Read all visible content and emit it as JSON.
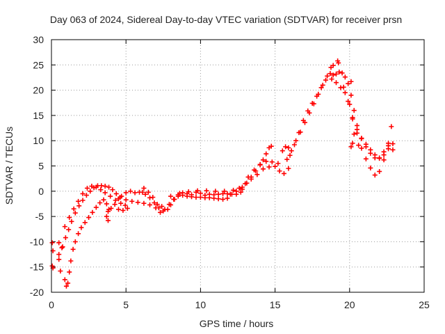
{
  "chart_data": {
    "type": "scatter",
    "title": "Day 063 of 2024, Sidereal Day-to-day VTEC variation (SDTVAR) for receiver prsn",
    "xlabel": "GPS time / hours",
    "ylabel": "SDTVAR / TECUs",
    "xlim": [
      0,
      25
    ],
    "ylim": [
      -20,
      30
    ],
    "xticks": [
      0,
      5,
      10,
      15,
      20,
      25
    ],
    "yticks": [
      -20,
      -15,
      -10,
      -5,
      0,
      5,
      10,
      15,
      20,
      25,
      30
    ],
    "grid": true,
    "grid_style": "dotted",
    "marker": "plus",
    "color": "#ff0000",
    "series": [
      {
        "name": "",
        "points": [
          [
            0.05,
            -10.2
          ],
          [
            0.1,
            -11.8
          ],
          [
            0.05,
            -14.8
          ],
          [
            0.1,
            -15.2
          ],
          [
            0.5,
            -10.2
          ],
          [
            0.7,
            -11.2
          ],
          [
            0.5,
            -13.5
          ],
          [
            0.6,
            -15.8
          ],
          [
            0.9,
            -17.5
          ],
          [
            1.0,
            -18.8
          ],
          [
            1.1,
            -18.2
          ],
          [
            1.2,
            -16.0
          ],
          [
            1.3,
            -13.8
          ],
          [
            1.45,
            -11.5
          ],
          [
            1.6,
            -10.0
          ],
          [
            1.8,
            -8.4
          ],
          [
            2.0,
            -7.2
          ],
          [
            2.25,
            -6.2
          ],
          [
            2.5,
            -5.2
          ],
          [
            2.75,
            -4.2
          ],
          [
            3.0,
            -3.2
          ],
          [
            3.25,
            -2.3
          ],
          [
            3.5,
            -1.7
          ],
          [
            3.7,
            -2.5
          ],
          [
            3.8,
            -4.0
          ],
          [
            3.7,
            -5.0
          ],
          [
            3.8,
            -5.8
          ],
          [
            0.5,
            -12.5
          ],
          [
            0.75,
            -11.0
          ],
          [
            0.95,
            -9.2
          ],
          [
            1.15,
            -7.6
          ],
          [
            1.35,
            -6.0
          ],
          [
            1.6,
            -4.3
          ],
          [
            1.85,
            -2.9
          ],
          [
            2.1,
            -1.8
          ],
          [
            2.35,
            -0.8
          ],
          [
            2.6,
            0.0
          ],
          [
            2.85,
            0.7
          ],
          [
            3.1,
            1.1
          ],
          [
            3.35,
            1.1
          ],
          [
            3.6,
            1.0
          ],
          [
            3.85,
            0.8
          ],
          [
            4.1,
            0.3
          ],
          [
            4.35,
            -0.5
          ],
          [
            4.5,
            -1.5
          ],
          [
            4.25,
            -2.6
          ],
          [
            4.0,
            -3.4
          ],
          [
            3.85,
            -3.6
          ],
          [
            0.9,
            -7.0
          ],
          [
            1.2,
            -5.2
          ],
          [
            1.5,
            -3.5
          ],
          [
            1.8,
            -2.0
          ],
          [
            2.1,
            -0.5
          ],
          [
            2.4,
            0.6
          ],
          [
            2.7,
            1.0
          ],
          [
            3.0,
            0.8
          ],
          [
            3.3,
            0.3
          ],
          [
            3.6,
            -0.3
          ],
          [
            3.95,
            -1.0
          ],
          [
            4.3,
            -1.8
          ],
          [
            4.65,
            -2.4
          ],
          [
            4.95,
            -2.8
          ],
          [
            5.1,
            -3.4
          ],
          [
            4.8,
            -3.8
          ],
          [
            4.5,
            -3.6
          ],
          [
            4.7,
            -1.0
          ],
          [
            5.0,
            -0.3
          ],
          [
            5.3,
            0.0
          ],
          [
            5.6,
            -0.3
          ],
          [
            5.9,
            -0.2
          ],
          [
            6.1,
            -0.2
          ],
          [
            6.3,
            -0.6
          ],
          [
            6.6,
            -1.3
          ],
          [
            6.9,
            -2.3
          ],
          [
            7.2,
            -3.3
          ],
          [
            7.5,
            -3.9
          ],
          [
            7.8,
            -3.6
          ],
          [
            8.0,
            -2.7
          ],
          [
            8.25,
            -1.6
          ],
          [
            8.5,
            -0.7
          ],
          [
            8.8,
            -0.8
          ],
          [
            9.1,
            -1.0
          ],
          [
            9.4,
            -1.1
          ],
          [
            9.7,
            -1.2
          ],
          [
            10.0,
            -1.2
          ],
          [
            10.3,
            -1.3
          ],
          [
            10.6,
            -1.3
          ],
          [
            10.9,
            -1.4
          ],
          [
            11.2,
            -1.5
          ],
          [
            11.5,
            -1.6
          ],
          [
            11.8,
            -1.4
          ],
          [
            4.6,
            -1.2
          ],
          [
            5.0,
            -1.7
          ],
          [
            5.4,
            -2.0
          ],
          [
            5.8,
            -2.2
          ],
          [
            6.2,
            -2.4
          ],
          [
            6.6,
            -2.7
          ],
          [
            7.0,
            -3.3
          ],
          [
            7.3,
            -4.2
          ],
          [
            7.6,
            -3.6
          ],
          [
            7.9,
            -2.6
          ],
          [
            8.2,
            -1.6
          ],
          [
            8.5,
            -1.0
          ],
          [
            8.8,
            -0.3
          ],
          [
            9.1,
            -0.5
          ],
          [
            9.4,
            -0.7
          ],
          [
            9.7,
            -0.2
          ],
          [
            10.0,
            -0.4
          ],
          [
            10.3,
            -0.8
          ],
          [
            10.6,
            -0.6
          ],
          [
            10.9,
            -0.7
          ],
          [
            11.2,
            -0.6
          ],
          [
            11.5,
            -0.5
          ],
          [
            11.8,
            -0.5
          ],
          [
            12.1,
            -0.6
          ],
          [
            12.4,
            -0.6
          ],
          [
            12.7,
            -0.2
          ],
          [
            6.2,
            0.6
          ],
          [
            6.5,
            -0.2
          ],
          [
            6.8,
            -1.2
          ],
          [
            7.1,
            -2.6
          ],
          [
            7.4,
            -3.0
          ],
          [
            8.0,
            -1.0
          ],
          [
            8.6,
            -0.4
          ],
          [
            9.2,
            -0.1
          ],
          [
            9.8,
            0.1
          ],
          [
            10.4,
            0.1
          ],
          [
            11.0,
            0.0
          ],
          [
            11.6,
            0.0
          ],
          [
            12.2,
            0.2
          ],
          [
            12.8,
            0.8
          ],
          [
            12.0,
            -0.6
          ],
          [
            12.4,
            0.0
          ],
          [
            12.8,
            0.4
          ],
          [
            13.1,
            1.6
          ],
          [
            13.4,
            2.8
          ],
          [
            13.7,
            4.0
          ],
          [
            14.0,
            5.2
          ],
          [
            14.2,
            6.2
          ],
          [
            14.4,
            7.4
          ],
          [
            14.6,
            8.6
          ],
          [
            14.75,
            8.9
          ],
          [
            12.6,
            0.6
          ],
          [
            13.0,
            1.5
          ],
          [
            13.4,
            2.4
          ],
          [
            13.8,
            3.3
          ],
          [
            14.2,
            4.4
          ],
          [
            14.6,
            4.8
          ],
          [
            15.0,
            4.9
          ],
          [
            15.3,
            4.0
          ],
          [
            15.6,
            3.5
          ],
          [
            15.9,
            4.5
          ],
          [
            13.2,
            2.8
          ],
          [
            13.6,
            4.2
          ],
          [
            14.0,
            5.3
          ],
          [
            14.4,
            5.9
          ],
          [
            14.8,
            5.8
          ],
          [
            15.2,
            5.5
          ],
          [
            15.5,
            8.0
          ],
          [
            15.7,
            8.8
          ],
          [
            15.9,
            8.6
          ],
          [
            15.8,
            6.3
          ],
          [
            16.1,
            8.0
          ],
          [
            16.4,
            10.0
          ],
          [
            16.7,
            11.7
          ],
          [
            17.0,
            13.6
          ],
          [
            17.3,
            15.5
          ],
          [
            17.6,
            17.3
          ],
          [
            17.9,
            19.2
          ],
          [
            18.2,
            21.0
          ],
          [
            18.5,
            22.8
          ],
          [
            18.75,
            24.5
          ],
          [
            18.9,
            24.9
          ],
          [
            16.0,
            7.1
          ],
          [
            16.3,
            9.2
          ],
          [
            16.6,
            11.6
          ],
          [
            16.9,
            14.0
          ],
          [
            17.2,
            15.9
          ],
          [
            17.5,
            17.4
          ],
          [
            17.8,
            18.8
          ],
          [
            18.1,
            20.5
          ],
          [
            18.4,
            22.0
          ],
          [
            18.7,
            23.3
          ],
          [
            18.9,
            23.0
          ],
          [
            18.8,
            22.2
          ],
          [
            19.1,
            23.2
          ],
          [
            19.3,
            23.6
          ],
          [
            19.5,
            23.4
          ],
          [
            19.7,
            22.6
          ],
          [
            19.9,
            21.3
          ],
          [
            20.1,
            19.0
          ],
          [
            20.3,
            16.0
          ],
          [
            20.5,
            13.0
          ],
          [
            20.8,
            10.5
          ],
          [
            21.1,
            8.8
          ],
          [
            21.4,
            7.5
          ],
          [
            21.7,
            6.6
          ],
          [
            22.0,
            6.6
          ],
          [
            22.3,
            7.2
          ],
          [
            22.6,
            8.4
          ],
          [
            22.9,
            9.4
          ],
          [
            19.1,
            21.5
          ],
          [
            19.4,
            20.5
          ],
          [
            19.7,
            19.5
          ],
          [
            20.0,
            17.2
          ],
          [
            20.2,
            14.3
          ],
          [
            20.5,
            11.5
          ],
          [
            20.8,
            8.5
          ],
          [
            21.1,
            6.4
          ],
          [
            21.4,
            4.6
          ],
          [
            21.7,
            3.2
          ],
          [
            22.0,
            3.9
          ],
          [
            22.3,
            6.2
          ],
          [
            22.6,
            9.5
          ],
          [
            22.8,
            12.8
          ],
          [
            19.6,
            20.6
          ],
          [
            19.9,
            17.8
          ],
          [
            20.2,
            14.6
          ],
          [
            20.5,
            12.2
          ],
          [
            20.8,
            10.4
          ],
          [
            21.1,
            9.3
          ],
          [
            21.4,
            8.2
          ],
          [
            21.7,
            7.2
          ],
          [
            22.0,
            6.5
          ],
          [
            22.3,
            7.8
          ],
          [
            22.6,
            9.0
          ],
          [
            22.9,
            8.2
          ],
          [
            20.2,
            9.5
          ],
          [
            20.1,
            8.8
          ],
          [
            20.3,
            11.3
          ],
          [
            20.1,
            21.7
          ],
          [
            20.6,
            9.1
          ],
          [
            19.2,
            25.8
          ],
          [
            19.25,
            25.4
          ]
        ]
      }
    ]
  }
}
